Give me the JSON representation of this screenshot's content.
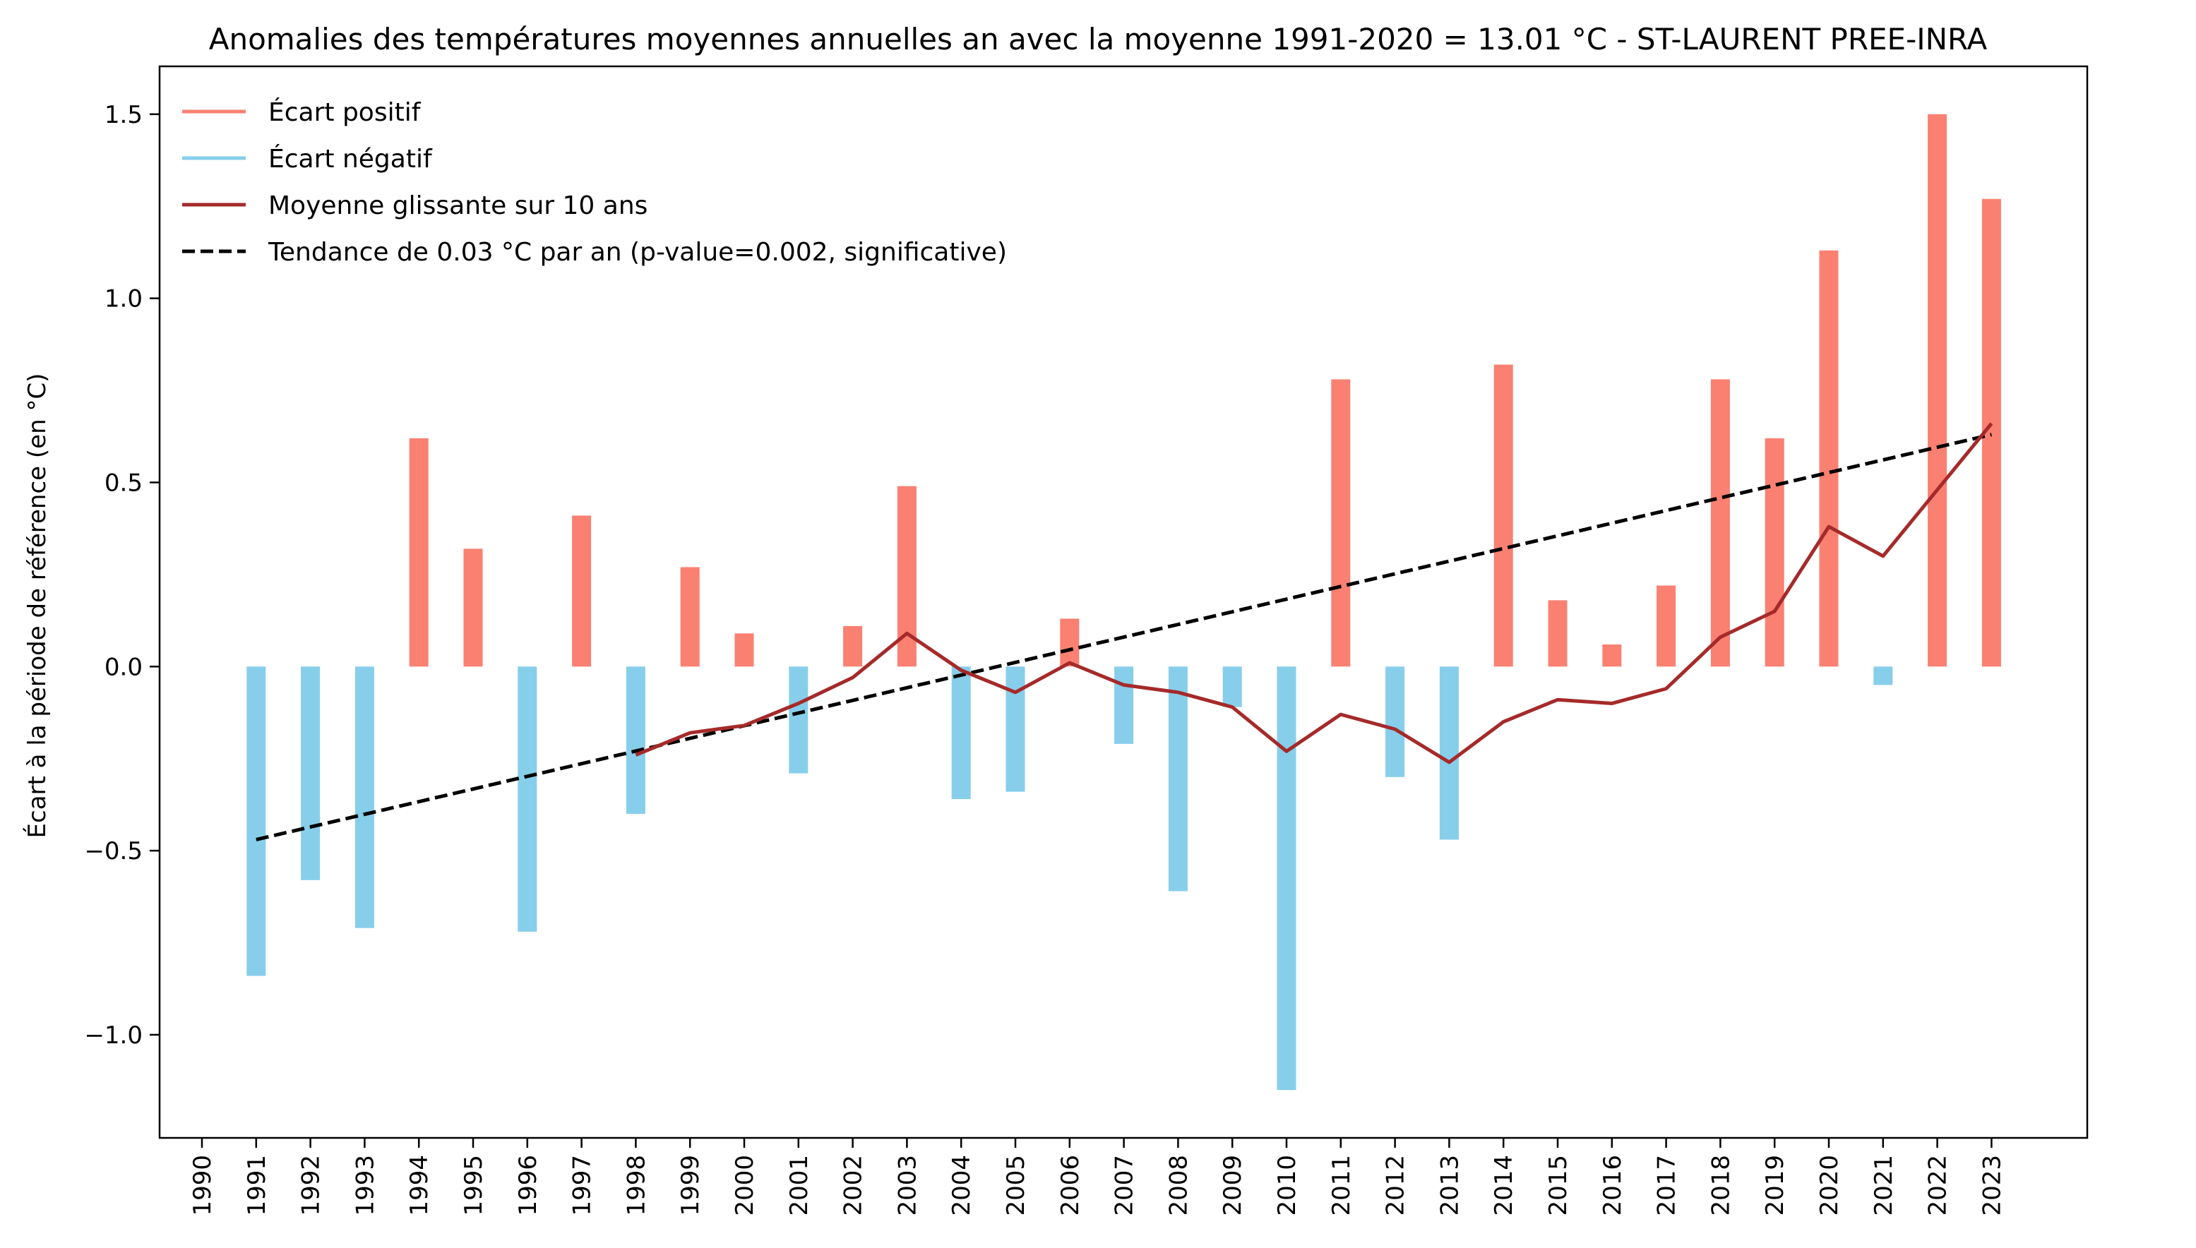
{
  "chart_data": {
    "type": "bar",
    "title": "Anomalies des températures moyennes annuelles an avec la moyenne 1991-2020 = 13.01 °C - ST-LAURENT PREE-INRA",
    "xlabel": "",
    "ylabel": "Écart à la période de référence (en °C)",
    "ylim": [
      -1.28,
      1.63
    ],
    "yticks": [
      -1.0,
      -0.5,
      0.0,
      0.5,
      1.0,
      1.5
    ],
    "ytick_labels": [
      "−1.0",
      "−0.5",
      "0.0",
      "0.5",
      "1.0",
      "1.5"
    ],
    "xticks": [
      "1990",
      "1991",
      "1992",
      "1993",
      "1994",
      "1995",
      "1996",
      "1997",
      "1998",
      "1999",
      "2000",
      "2001",
      "2002",
      "2003",
      "2004",
      "2005",
      "2006",
      "2007",
      "2008",
      "2009",
      "2010",
      "2011",
      "2012",
      "2013",
      "2014",
      "2015",
      "2016",
      "2017",
      "2018",
      "2019",
      "2020",
      "2021",
      "2022",
      "2023"
    ],
    "years": [
      1991,
      1992,
      1993,
      1994,
      1995,
      1996,
      1997,
      1998,
      1999,
      2000,
      2001,
      2002,
      2003,
      2004,
      2005,
      2006,
      2007,
      2008,
      2009,
      2010,
      2011,
      2012,
      2013,
      2014,
      2015,
      2016,
      2017,
      2018,
      2019,
      2020,
      2021,
      2022,
      2023
    ],
    "anomalies": [
      -0.84,
      -0.58,
      -0.71,
      0.62,
      0.32,
      -0.72,
      0.41,
      -0.4,
      0.27,
      0.09,
      -0.29,
      0.11,
      0.49,
      -0.36,
      -0.34,
      0.13,
      -0.21,
      -0.61,
      -0.11,
      -1.15,
      0.78,
      -0.3,
      -0.47,
      0.82,
      0.18,
      0.06,
      0.22,
      0.78,
      0.62,
      1.13,
      -0.05,
      1.5,
      1.27
    ],
    "rolling_mean": [
      null,
      null,
      null,
      null,
      null,
      null,
      null,
      -0.24,
      -0.18,
      -0.16,
      -0.1,
      -0.03,
      0.09,
      -0.01,
      -0.07,
      0.01,
      -0.05,
      -0.07,
      -0.11,
      -0.23,
      -0.13,
      -0.17,
      -0.26,
      -0.15,
      -0.09,
      -0.1,
      -0.06,
      0.08,
      0.15,
      0.38,
      0.3,
      0.48,
      0.66
    ],
    "trend": {
      "x_start": 1991,
      "y_start": -0.47,
      "x_end": 2023,
      "y_end": 0.63
    },
    "legend": [
      {
        "label": "Écart positif",
        "color": "#fa8072",
        "style": "solid"
      },
      {
        "label": "Écart négatif",
        "color": "#87ceeb",
        "style": "solid"
      },
      {
        "label": "Moyenne glissante sur 10 ans",
        "color": "#a52a2a",
        "style": "solid"
      },
      {
        "label": "Tendance de 0.03 °C par an (p-value=0.002, significative)",
        "color": "#000000",
        "style": "dashed"
      }
    ],
    "legend_position": "top-left",
    "grid": false,
    "colors": {
      "positive": "#fa8072",
      "negative": "#87ceeb",
      "rolling": "#a52a2a",
      "trend": "#000000"
    }
  }
}
